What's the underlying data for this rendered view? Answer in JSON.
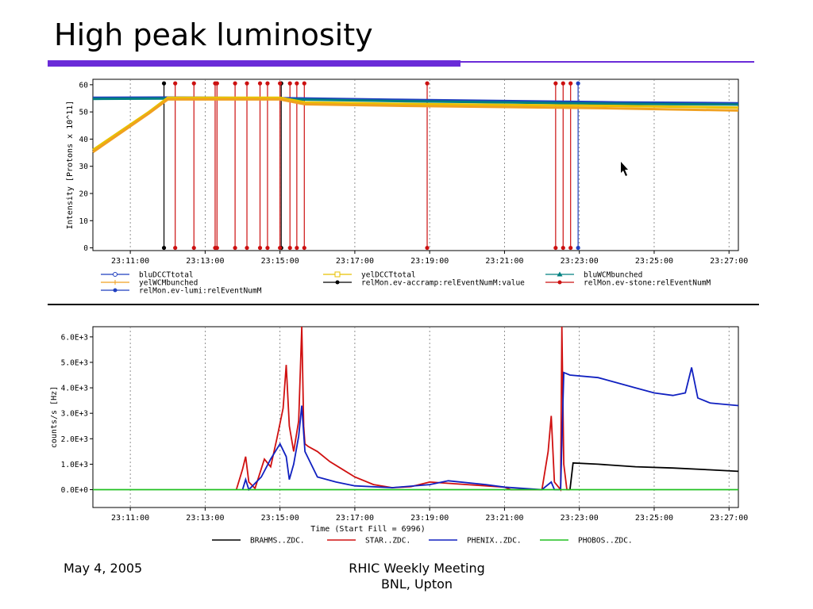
{
  "slide": {
    "title": "High peak luminosity",
    "footer_left": "May 4, 2005",
    "footer_center_line1": "RHIC Weekly Meeting",
    "footer_center_line2": "BNL, Upton",
    "accent_color": "#6a2bd8"
  },
  "chart_data": [
    {
      "type": "line",
      "ylabel": "Intensity [Protons x 10^11]",
      "xlabel": "",
      "xlim": [
        "23:10:00",
        "23:27:15"
      ],
      "ylim": [
        -1,
        62
      ],
      "xticks": [
        "23:11:00",
        "23:13:00",
        "23:15:00",
        "23:17:00",
        "23:19:00",
        "23:21:00",
        "23:23:00",
        "23:25:00",
        "23:27:00"
      ],
      "yticks": [
        0,
        10,
        20,
        30,
        40,
        50,
        60
      ],
      "grid": true,
      "legend_position": "bottom",
      "legend": [
        {
          "name": "bluDCCTtotal",
          "color": "#1f3fbf",
          "marker": "circle-open"
        },
        {
          "name": "yelDCCTtotal",
          "color": "#e8c000",
          "marker": "square-open"
        },
        {
          "name": "bluWCMbunched",
          "color": "#008080",
          "marker": "triangle"
        },
        {
          "name": "yelWCMbunched",
          "color": "#f0a020",
          "marker": "plus"
        },
        {
          "name": "relMon.ev-accramp:relEventNumM:value",
          "color": "#000000",
          "marker": "dot"
        },
        {
          "name": "relMon.ev-stone:relEventNumM",
          "color": "#cc1010",
          "marker": "dot"
        },
        {
          "name": "relMon.ev-lumi:relEventNumM",
          "color": "#1f3fbf",
          "marker": "dot"
        }
      ],
      "series": [
        {
          "name": "bluDCCTtotal",
          "color": "#1f3fbf",
          "x": [
            "23:10:00",
            "23:12:00",
            "23:15:00",
            "23:18:00",
            "23:21:00",
            "23:24:00",
            "23:27:15"
          ],
          "values": [
            55.2,
            55.3,
            55.1,
            54.5,
            54.0,
            53.5,
            53.2
          ]
        },
        {
          "name": "bluWCMbunched",
          "color": "#008080",
          "x": [
            "23:10:00",
            "23:12:00",
            "23:15:00",
            "23:18:00",
            "23:21:00",
            "23:24:00",
            "23:27:15"
          ],
          "values": [
            54.8,
            54.9,
            54.7,
            54.0,
            53.5,
            53.0,
            52.7
          ]
        },
        {
          "name": "yelDCCTtotal",
          "color": "#e8c000",
          "x": [
            "23:10:00",
            "23:11:30",
            "23:12:00",
            "23:15:00",
            "23:15:40",
            "23:18:00",
            "23:21:00",
            "23:24:00",
            "23:27:15"
          ],
          "values": [
            36,
            50,
            55.2,
            55.2,
            53.5,
            53.0,
            52.6,
            52.2,
            51.6
          ]
        },
        {
          "name": "yelWCMbunched",
          "color": "#f0a020",
          "x": [
            "23:10:00",
            "23:11:30",
            "23:12:00",
            "23:15:00",
            "23:15:40",
            "23:18:00",
            "23:21:00",
            "23:24:00",
            "23:27:15"
          ],
          "values": [
            35.2,
            49.5,
            54.6,
            54.6,
            52.8,
            52.3,
            51.8,
            51.3,
            50.5
          ]
        }
      ],
      "events": [
        {
          "series": "relMon.ev-accramp:relEventNumM:value",
          "color": "#000000",
          "times": [
            "23:11:54",
            "23:15:02"
          ]
        },
        {
          "series": "relMon.ev-stone:relEventNumM",
          "color": "#cc1010",
          "times": [
            "23:12:12",
            "23:12:42",
            "23:13:16",
            "23:13:19",
            "23:13:48",
            "23:14:07",
            "23:14:28",
            "23:14:40",
            "23:15:00",
            "23:15:16",
            "23:15:27",
            "23:15:39",
            "23:18:56",
            "23:22:22",
            "23:22:34",
            "23:22:46"
          ]
        },
        {
          "series": "relMon.ev-lumi:relEventNumM",
          "color": "#1f3fbf",
          "times": [
            "23:22:58"
          ]
        }
      ]
    },
    {
      "type": "line",
      "ylabel": "counts/s [Hz]",
      "xlabel": "Time (Start Fill = 6996)",
      "xlim": [
        "23:10:00",
        "23:27:15"
      ],
      "ylim": [
        -700,
        6400
      ],
      "xticks": [
        "23:11:00",
        "23:13:00",
        "23:15:00",
        "23:17:00",
        "23:19:00",
        "23:21:00",
        "23:23:00",
        "23:25:00",
        "23:27:00"
      ],
      "yticks": [
        "0.0E+0",
        "1.0E+3",
        "2.0E+3",
        "3.0E+3",
        "4.0E+3",
        "5.0E+3",
        "6.0E+3"
      ],
      "ytick_values": [
        0,
        1000,
        2000,
        3000,
        4000,
        5000,
        6000
      ],
      "grid": true,
      "legend_position": "bottom",
      "series": [
        {
          "name": "BRAHMS..ZDC.",
          "color": "#000000",
          "x": [
            "23:22:45",
            "23:22:50",
            "23:23:30",
            "23:24:30",
            "23:25:30",
            "23:26:30",
            "23:27:15"
          ],
          "values": [
            0,
            1050,
            1000,
            900,
            850,
            780,
            720
          ]
        },
        {
          "name": "STAR..ZDC.",
          "color": "#d01010",
          "x": [
            "23:13:50",
            "23:14:00",
            "23:14:05",
            "23:14:10",
            "23:14:20",
            "23:14:35",
            "23:14:45",
            "23:14:55",
            "23:15:05",
            "23:15:10",
            "23:15:15",
            "23:15:22",
            "23:15:30",
            "23:15:35",
            "23:15:38",
            "23:15:40",
            "23:15:45",
            "23:16:00",
            "23:16:20",
            "23:16:40",
            "23:17:00",
            "23:17:30",
            "23:18:00",
            "23:18:30",
            "23:19:00",
            "23:19:30",
            "23:20:00",
            "23:20:30",
            "23:21:00",
            "23:21:10",
            "23:22:00",
            "23:22:10",
            "23:22:15",
            "23:22:20",
            "23:22:30",
            "23:22:32",
            "23:22:35",
            "23:22:40",
            "23:22:45"
          ],
          "values": [
            0,
            800,
            1300,
            300,
            50,
            1200,
            900,
            2000,
            3200,
            4900,
            2500,
            1500,
            2700,
            6400,
            2500,
            1800,
            1700,
            1500,
            1100,
            800,
            500,
            200,
            80,
            120,
            300,
            250,
            200,
            150,
            100,
            0,
            0,
            1500,
            2900,
            300,
            0,
            6400,
            1000,
            0,
            0
          ]
        },
        {
          "name": "PHENIX..ZDC.",
          "color": "#1020c0",
          "x": [
            "23:14:00",
            "23:14:05",
            "23:14:10",
            "23:14:30",
            "23:14:45",
            "23:15:00",
            "23:15:10",
            "23:15:15",
            "23:15:22",
            "23:15:30",
            "23:15:35",
            "23:15:40",
            "23:16:00",
            "23:16:30",
            "23:17:00",
            "23:18:00",
            "23:19:00",
            "23:19:30",
            "23:20:30",
            "23:21:00",
            "23:22:00",
            "23:22:15",
            "23:22:20",
            "23:22:30",
            "23:22:35",
            "23:22:45",
            "23:23:30",
            "23:24:00",
            "23:24:30",
            "23:25:00",
            "23:25:30",
            "23:25:50",
            "23:26:00",
            "23:26:10",
            "23:26:30",
            "23:27:15"
          ],
          "values": [
            0,
            400,
            0,
            500,
            1200,
            1800,
            1300,
            400,
            1000,
            2100,
            3300,
            1500,
            500,
            300,
            150,
            80,
            200,
            350,
            200,
            100,
            0,
            300,
            0,
            0,
            4600,
            4500,
            4400,
            4200,
            4000,
            3800,
            3700,
            3800,
            4800,
            3600,
            3400,
            3300
          ]
        },
        {
          "name": "PHOBOS..ZDC.",
          "color": "#20c020",
          "x": [
            "23:10:00",
            "23:27:15"
          ],
          "values": [
            0,
            0
          ]
        }
      ]
    }
  ]
}
